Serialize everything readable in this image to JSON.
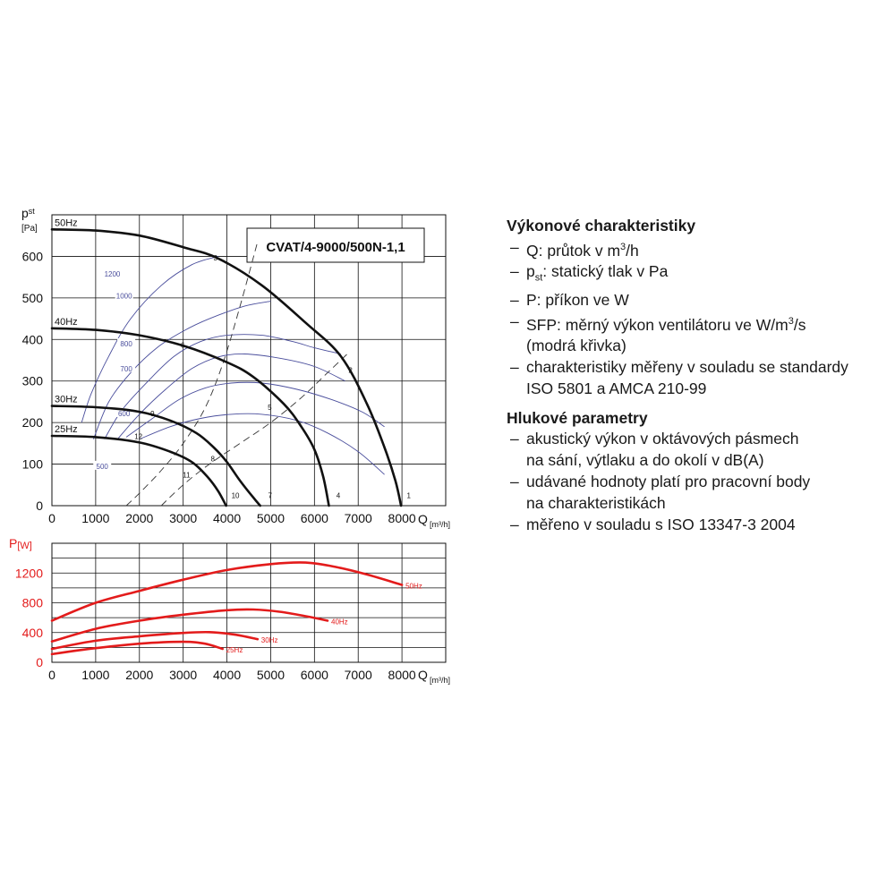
{
  "chart_data": [
    {
      "type": "line",
      "model_label": "CVAT/4-9000/500N-1,1",
      "y_axis_symbol": "p",
      "y_axis_subscript": "st",
      "y_axis_unit": "[Pa]",
      "x_axis_symbol": "Q",
      "x_axis_unit": "[m³/h]",
      "xlim": [
        0,
        9000
      ],
      "ylim": [
        0,
        700
      ],
      "x_ticks": [
        "0",
        "1000",
        "2000",
        "3000",
        "4000",
        "5000",
        "6000",
        "7000",
        "8000"
      ],
      "y_ticks": [
        "0",
        "100",
        "200",
        "300",
        "400",
        "500",
        "600"
      ],
      "grid": true,
      "colors": {
        "pressure": "#111111",
        "sfp": "#4a4e9c",
        "system": "#333333"
      },
      "series": [
        {
          "name": "50Hz",
          "points": [
            [
              0,
              665
            ],
            [
              1000,
              662
            ],
            [
              2000,
              650
            ],
            [
              3000,
              622
            ],
            [
              3800,
              595
            ],
            [
              4800,
              530
            ],
            [
              5800,
              440
            ],
            [
              6600,
              360
            ],
            [
              7200,
              245
            ],
            [
              7600,
              140
            ],
            [
              7850,
              60
            ],
            [
              7980,
              0
            ]
          ]
        },
        {
          "name": "40Hz",
          "points": [
            [
              0,
              427
            ],
            [
              1000,
              423
            ],
            [
              2000,
              410
            ],
            [
              3000,
              385
            ],
            [
              4000,
              345
            ],
            [
              4600,
              310
            ],
            [
              5300,
              245
            ],
            [
              5700,
              190
            ],
            [
              6000,
              135
            ],
            [
              6200,
              70
            ],
            [
              6330,
              0
            ]
          ]
        },
        {
          "name": "30Hz",
          "points": [
            [
              0,
              240
            ],
            [
              1000,
              237
            ],
            [
              2000,
              226
            ],
            [
              2700,
              205
            ],
            [
              3300,
              175
            ],
            [
              3700,
              140
            ],
            [
              4000,
              105
            ],
            [
              4300,
              60
            ],
            [
              4600,
              20
            ],
            [
              4760,
              0
            ]
          ]
        },
        {
          "name": "25Hz",
          "points": [
            [
              0,
              168
            ],
            [
              1000,
              165
            ],
            [
              2000,
              152
            ],
            [
              2700,
              130
            ],
            [
              3200,
              105
            ],
            [
              3550,
              70
            ],
            [
              3800,
              35
            ],
            [
              3980,
              0
            ]
          ]
        }
      ],
      "sfp_curves": [
        {
          "label": "1200",
          "points": [
            [
              680,
              200
            ],
            [
              900,
              270
            ],
            [
              1300,
              360
            ],
            [
              1800,
              450
            ],
            [
              2500,
              530
            ],
            [
              3200,
              580
            ],
            [
              3800,
              600
            ]
          ]
        },
        {
          "label": "1000",
          "points": [
            [
              950,
              160
            ],
            [
              1300,
              250
            ],
            [
              1800,
              320
            ],
            [
              2400,
              380
            ],
            [
              3000,
              420
            ],
            [
              3600,
              450
            ],
            [
              4400,
              480
            ],
            [
              5000,
              492
            ]
          ]
        },
        {
          "label": "800",
          "points": [
            [
              1200,
              160
            ],
            [
              1600,
              230
            ],
            [
              2200,
              300
            ],
            [
              2800,
              360
            ],
            [
              3400,
              395
            ],
            [
              4000,
              410
            ],
            [
              4800,
              410
            ],
            [
              5500,
              395
            ],
            [
              6000,
              380
            ],
            [
              6600,
              365
            ]
          ]
        },
        {
          "label": "700",
          "points": [
            [
              1500,
              160
            ],
            [
              2000,
              220
            ],
            [
              2600,
              280
            ],
            [
              3200,
              330
            ],
            [
              3800,
              358
            ],
            [
              4400,
              365
            ],
            [
              5200,
              355
            ],
            [
              6000,
              335
            ],
            [
              6700,
              300
            ]
          ]
        },
        {
          "label": "600",
          "points": [
            [
              1700,
              165
            ],
            [
              2300,
              210
            ],
            [
              2900,
              255
            ],
            [
              3500,
              283
            ],
            [
              4100,
              295
            ],
            [
              4800,
              295
            ],
            [
              5600,
              280
            ],
            [
              6400,
              255
            ],
            [
              7100,
              225
            ],
            [
              7600,
              190
            ]
          ]
        },
        {
          "label": "500",
          "points": [
            [
              2000,
              160
            ],
            [
              2700,
              190
            ],
            [
              3400,
              210
            ],
            [
              4100,
              220
            ],
            [
              4800,
              220
            ],
            [
              5600,
              205
            ],
            [
              6300,
              175
            ],
            [
              7000,
              130
            ],
            [
              7600,
              75
            ]
          ]
        }
      ],
      "sfp_label_positions": {
        "1200": [
          1380,
          558
        ],
        "1000": [
          1650,
          505
        ],
        "800": [
          1700,
          390
        ],
        "700": [
          1700,
          330
        ],
        "600": [
          1650,
          222
        ],
        "500": [
          1150,
          95
        ]
      },
      "system_curves": [
        {
          "points": [
            [
              1700,
              0
            ],
            [
              2000,
              30
            ],
            [
              2500,
              85
            ],
            [
              3000,
              150
            ],
            [
              3500,
              235
            ],
            [
              3900,
              340
            ],
            [
              4300,
              480
            ],
            [
              4700,
              635
            ]
          ]
        },
        {
          "points": [
            [
              2500,
              0
            ],
            [
              3000,
              50
            ],
            [
              3600,
              100
            ],
            [
              4300,
              150
            ],
            [
              5000,
              200
            ],
            [
              5700,
              260
            ],
            [
              6300,
              320
            ],
            [
              6800,
              370
            ]
          ]
        }
      ],
      "operating_points": [
        {
          "label": "1",
          "point": [
            7950,
            5
          ],
          "label_offset": [
            10,
            -6
          ]
        },
        {
          "label": "2",
          "point": [
            6620,
            350
          ],
          "label_offset": [
            10,
            14
          ]
        },
        {
          "label": "3",
          "point": [
            3860,
            590
          ],
          "label_offset": [
            -6,
            0
          ]
        },
        {
          "label": "4",
          "point": [
            6340,
            5
          ],
          "label_offset": [
            10,
            -6
          ]
        },
        {
          "label": "5",
          "point": [
            5060,
            230
          ],
          "label_offset": [
            -4,
            0
          ]
        },
        {
          "label": "6",
          "point": [
            3110,
            380
          ],
          "label_offset": [
            -6,
            0
          ]
        },
        {
          "label": "7",
          "point": [
            4780,
            5
          ],
          "label_offset": [
            10,
            -6
          ]
        },
        {
          "label": "8",
          "point": [
            3800,
            120
          ],
          "label_offset": [
            -6,
            6
          ]
        },
        {
          "label": "9",
          "point": [
            2420,
            215
          ],
          "label_offset": [
            -6,
            0
          ]
        },
        {
          "label": "10",
          "point": [
            3990,
            5
          ],
          "label_offset": [
            10,
            -6
          ]
        },
        {
          "label": "11",
          "point": [
            3200,
            85
          ],
          "label_offset": [
            -6,
            8
          ]
        },
        {
          "label": "12",
          "point": [
            2100,
            160
          ],
          "label_offset": [
            -6,
            0
          ]
        }
      ]
    },
    {
      "type": "line",
      "y_axis_symbol": "P",
      "y_axis_unit": "[W]",
      "x_axis_symbol": "Q",
      "x_axis_unit": "[m³/h]",
      "xlim": [
        0,
        9000
      ],
      "ylim": [
        0,
        1600
      ],
      "x_ticks": [
        "0",
        "1000",
        "2000",
        "3000",
        "4000",
        "5000",
        "6000",
        "7000",
        "8000"
      ],
      "y_ticks": [
        "0",
        "400",
        "800",
        "1200"
      ],
      "grid": true,
      "color": "#e31b1b",
      "series": [
        {
          "name": "50Hz",
          "points": [
            [
              0,
              560
            ],
            [
              1000,
              800
            ],
            [
              2000,
              960
            ],
            [
              3000,
              1110
            ],
            [
              4000,
              1240
            ],
            [
              5000,
              1320
            ],
            [
              5800,
              1340
            ],
            [
              6500,
              1280
            ],
            [
              7200,
              1180
            ],
            [
              8000,
              1040
            ]
          ]
        },
        {
          "name": "40Hz",
          "points": [
            [
              0,
              280
            ],
            [
              1000,
              450
            ],
            [
              2000,
              560
            ],
            [
              3000,
              640
            ],
            [
              4000,
              700
            ],
            [
              4600,
              710
            ],
            [
              5200,
              680
            ],
            [
              5800,
              620
            ],
            [
              6300,
              560
            ]
          ]
        },
        {
          "name": "30Hz",
          "points": [
            [
              0,
              180
            ],
            [
              1000,
              290
            ],
            [
              2000,
              350
            ],
            [
              3000,
              395
            ],
            [
              3600,
              405
            ],
            [
              4200,
              370
            ],
            [
              4700,
              310
            ]
          ]
        },
        {
          "name": "25Hz",
          "points": [
            [
              0,
              110
            ],
            [
              1000,
              190
            ],
            [
              2000,
              250
            ],
            [
              3000,
              275
            ],
            [
              3500,
              250
            ],
            [
              3900,
              180
            ]
          ]
        }
      ]
    }
  ],
  "description": {
    "performance_title": "Výkonové charakteristiky",
    "performance_items": [
      {
        "pre": "Q: průtok v m",
        "sup": "3",
        "post": "/h",
        "cont": ""
      },
      {
        "pre": "p",
        "sub": "st",
        "post": ": statický tlak v Pa",
        "cont": ""
      },
      {
        "pre": "P: příkon ve W",
        "cont": ""
      },
      {
        "pre": "SFP: měrný výkon ventilátoru ve W/m",
        "sup": "3",
        "post": "/s",
        "cont": "(modrá křivka)"
      },
      {
        "pre": "charakteristiky měřeny v souladu se standardy",
        "cont": "ISO 5801 a AMCA 210-99"
      }
    ],
    "noise_title": "Hlukové parametry",
    "noise_items": [
      {
        "pre": "akustický výkon v oktávových pásmech",
        "cont": "na sání, výtlaku a do okolí v dB(A)"
      },
      {
        "pre": "udávané hodnoty platí pro pracovní body",
        "cont": "na charakteristikách"
      },
      {
        "pre": "měřeno v souladu s ISO 13347-3 2004",
        "cont": ""
      }
    ]
  }
}
